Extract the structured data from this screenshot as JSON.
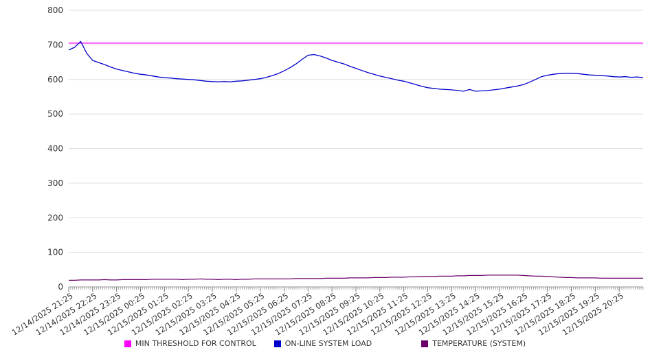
{
  "chart_data": {
    "type": "line",
    "title": "",
    "xlabel": "",
    "ylabel": "",
    "ylim": [
      0,
      800
    ],
    "yticks": [
      0,
      100,
      200,
      300,
      400,
      500,
      600,
      700,
      800
    ],
    "grid": "horizontal",
    "legend_position": "bottom-center",
    "points_per_interval": 4,
    "categories": [
      "12/14/2025 21:25",
      "12/14/2025 22:25",
      "12/14/2025 23:25",
      "12/15/2025 00:25",
      "12/15/2025 01:25",
      "12/15/2025 02:25",
      "12/15/2025 03:25",
      "12/15/2025 04:25",
      "12/15/2025 05:25",
      "12/15/2025 06:25",
      "12/15/2025 07:25",
      "12/15/2025 08:25",
      "12/15/2025 09:25",
      "12/15/2025 10:25",
      "12/15/2025 11:25",
      "12/15/2025 12:25",
      "12/15/2025 13:25",
      "12/15/2025 14:25",
      "12/15/2025 15:25",
      "12/15/2025 16:25",
      "12/15/2025 17:25",
      "12/15/2025 18:25",
      "12/15/2025 19:25",
      "12/15/2025 20:25"
    ],
    "series": [
      {
        "name": "MIN THRESHOLD FOR CONTROL",
        "color": "#ff00ff",
        "constant": 705
      },
      {
        "name": "ON-LINE SYSTEM LOAD",
        "color": "#0000cd",
        "values": [
          685,
          693,
          710,
          676,
          655,
          649,
          643,
          636,
          630,
          626,
          622,
          618,
          615,
          613,
          610,
          607,
          605,
          604,
          602,
          601,
          600,
          599,
          597,
          595,
          594,
          593,
          594,
          593,
          595,
          596,
          598,
          600,
          602,
          606,
          611,
          617,
          625,
          634,
          645,
          658,
          670,
          672,
          668,
          662,
          655,
          650,
          645,
          638,
          632,
          626,
          620,
          615,
          610,
          606,
          602,
          598,
          595,
          590,
          585,
          580,
          576,
          574,
          572,
          571,
          570,
          568,
          566,
          571,
          566,
          567,
          568,
          570,
          572,
          575,
          578,
          581,
          585,
          592,
          600,
          608,
          612,
          615,
          617,
          618,
          618,
          617,
          615,
          613,
          612,
          611,
          610,
          608,
          607,
          608,
          606,
          607,
          605
        ]
      },
      {
        "name": "TEMPERATURE (SYSTEM)",
        "color": "#6a006a",
        "values": [
          19,
          19,
          20,
          20,
          20,
          20,
          21,
          20,
          20,
          21,
          21,
          21,
          21,
          21,
          22,
          22,
          22,
          22,
          22,
          21,
          22,
          22,
          23,
          22,
          22,
          21,
          22,
          22,
          21,
          22,
          22,
          23,
          23,
          23,
          23,
          23,
          23,
          23,
          24,
          24,
          24,
          24,
          24,
          25,
          25,
          25,
          25,
          26,
          26,
          26,
          26,
          27,
          27,
          27,
          28,
          28,
          28,
          29,
          29,
          30,
          30,
          30,
          31,
          31,
          31,
          32,
          32,
          33,
          33,
          33,
          34,
          34,
          34,
          34,
          34,
          34,
          33,
          32,
          31,
          31,
          30,
          29,
          28,
          27,
          27,
          26,
          26,
          26,
          26,
          25,
          25,
          25,
          25,
          25,
          25,
          25,
          25
        ]
      }
    ],
    "axis": {
      "grid_color": "#dddddd",
      "axis_color": "#999999",
      "tick_color": "#777777",
      "label_color": "#333333"
    }
  }
}
